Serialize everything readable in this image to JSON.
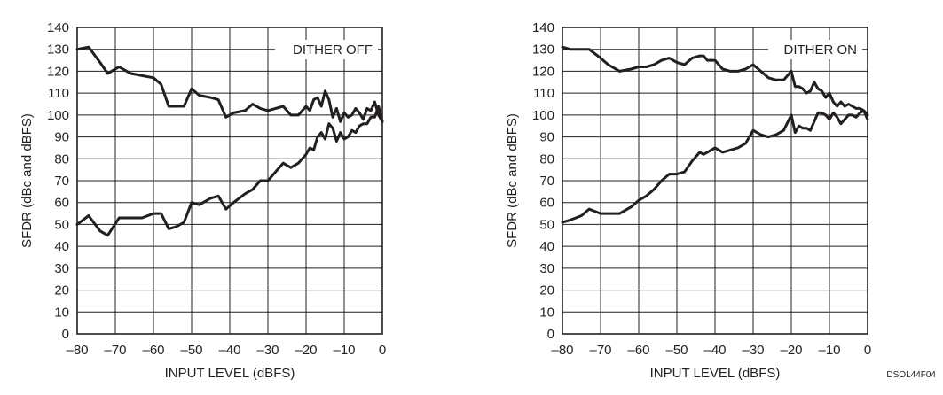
{
  "figure_id": "DSOL44F04",
  "chart_data": [
    {
      "type": "line",
      "annotation": "DITHER OFF",
      "xlabel": "INPUT LEVEL  (dBFS)",
      "ylabel": "SFDR (dBc and dBFS)",
      "xlim": [
        -80,
        0
      ],
      "ylim": [
        0,
        140
      ],
      "xticks": [
        -80,
        -70,
        -60,
        -50,
        -40,
        -30,
        -20,
        -10,
        0
      ],
      "xtick_labels": [
        "–80",
        "–70",
        "–60",
        "–50",
        "–40",
        "–30",
        "–20",
        "–10",
        "0"
      ],
      "yticks": [
        0,
        10,
        20,
        30,
        40,
        50,
        60,
        70,
        80,
        90,
        100,
        110,
        120,
        130,
        140
      ],
      "ytick_labels": [
        "0",
        "10",
        "20",
        "30",
        "40",
        "50",
        "60",
        "70",
        "80",
        "90",
        "100",
        "110",
        "120",
        "130",
        "140"
      ],
      "grid": true,
      "line_color": "#231f20",
      "series": [
        {
          "x": [
            -80,
            -77,
            -74,
            -72,
            -69,
            -66,
            -63,
            -60,
            -58,
            -56,
            -54,
            -52,
            -50,
            -48,
            -45,
            -43,
            -41,
            -39,
            -36,
            -34,
            -32,
            -30,
            -26,
            -24,
            -22,
            -20,
            -19,
            -18,
            -17,
            -16,
            -15,
            -14,
            -13,
            -12,
            -11,
            -10,
            -9,
            -8,
            -7,
            -6,
            -5,
            -4,
            -3,
            -2,
            -1,
            0
          ],
          "y": [
            130,
            131,
            124,
            119,
            122,
            119,
            118,
            117,
            114,
            104,
            104,
            104,
            112,
            109,
            108,
            107,
            99,
            101,
            102,
            105,
            103,
            102,
            104,
            100,
            100,
            104,
            102,
            107,
            108,
            104,
            111,
            107,
            99,
            103,
            97,
            101,
            99,
            100,
            103,
            101,
            98,
            103,
            102,
            106,
            100,
            97
          ]
        },
        {
          "x": [
            -80,
            -77,
            -74,
            -72,
            -69,
            -66,
            -63,
            -60,
            -58,
            -56,
            -54,
            -52,
            -50,
            -48,
            -45,
            -43,
            -41,
            -39,
            -36,
            -34,
            -32,
            -30,
            -26,
            -24,
            -22,
            -20,
            -19,
            -18,
            -17,
            -16,
            -15,
            -14,
            -13,
            -12,
            -11,
            -10,
            -9,
            -8,
            -7,
            -6,
            -5,
            -4,
            -3,
            -2,
            -1,
            0
          ],
          "y": [
            50,
            54,
            47,
            45,
            53,
            53,
            53,
            55,
            55,
            48,
            49,
            51,
            60,
            59,
            62,
            63,
            57,
            60,
            64,
            66,
            70,
            70,
            78,
            76,
            78,
            82,
            85,
            84,
            90,
            92,
            89,
            96,
            94,
            88,
            92,
            89,
            90,
            93,
            92,
            95,
            96,
            96,
            99,
            99,
            104,
            97
          ]
        }
      ]
    },
    {
      "type": "line",
      "annotation": "DITHER ON",
      "xlabel": "INPUT LEVEL  (dBFS)",
      "ylabel": "SFDR (dBc and dBFS)",
      "xlim": [
        -80,
        0
      ],
      "ylim": [
        0,
        140
      ],
      "xticks": [
        -80,
        -70,
        -60,
        -50,
        -40,
        -30,
        -20,
        -10,
        0
      ],
      "xtick_labels": [
        "–80",
        "–70",
        "–60",
        "–50",
        "–40",
        "–30",
        "–20",
        "–10",
        "0"
      ],
      "yticks": [
        0,
        10,
        20,
        30,
        40,
        50,
        60,
        70,
        80,
        90,
        100,
        110,
        120,
        130,
        140
      ],
      "ytick_labels": [
        "0",
        "10",
        "20",
        "30",
        "40",
        "50",
        "60",
        "70",
        "80",
        "90",
        "100",
        "110",
        "120",
        "130",
        "140"
      ],
      "grid": true,
      "line_color": "#231f20",
      "series": [
        {
          "x": [
            -80,
            -78,
            -75,
            -73,
            -70,
            -68,
            -65,
            -62,
            -60,
            -58,
            -56,
            -54,
            -52,
            -50,
            -48,
            -46,
            -44,
            -43,
            -42,
            -40,
            -38,
            -36,
            -34,
            -32,
            -30,
            -28,
            -26,
            -24,
            -22,
            -20,
            -19,
            -18,
            -17,
            -16,
            -15,
            -14,
            -13,
            -12,
            -11,
            -10,
            -9,
            -8,
            -7,
            -6,
            -5,
            -4,
            -3,
            -2,
            -1,
            0
          ],
          "y": [
            131,
            130,
            130,
            130,
            126,
            123,
            120,
            121,
            122,
            122,
            123,
            125,
            126,
            124,
            123,
            126,
            127,
            127,
            125,
            125,
            121,
            120,
            120,
            121,
            123,
            120,
            117,
            116,
            116,
            120,
            113,
            113,
            112,
            110,
            111,
            115,
            112,
            111,
            108,
            110,
            106,
            104,
            106,
            104,
            105,
            104,
            103,
            103,
            102,
            98
          ]
        },
        {
          "x": [
            -80,
            -78,
            -75,
            -73,
            -70,
            -68,
            -65,
            -62,
            -60,
            -58,
            -56,
            -54,
            -52,
            -50,
            -48,
            -46,
            -44,
            -43,
            -42,
            -40,
            -38,
            -36,
            -34,
            -32,
            -30,
            -28,
            -26,
            -24,
            -22,
            -20,
            -19,
            -18,
            -17,
            -16,
            -15,
            -14,
            -13,
            -12,
            -11,
            -10,
            -9,
            -8,
            -7,
            -6,
            -5,
            -4,
            -3,
            -2,
            -1,
            0
          ],
          "y": [
            51,
            52,
            54,
            57,
            55,
            55,
            55,
            58,
            61,
            63,
            66,
            70,
            73,
            73,
            74,
            79,
            83,
            82,
            83,
            85,
            83,
            84,
            85,
            87,
            93,
            91,
            90,
            91,
            93,
            100,
            92,
            95,
            94,
            94,
            93,
            97,
            101,
            101,
            100,
            98,
            101,
            99,
            96,
            98,
            100,
            100,
            99,
            101,
            102,
            100
          ]
        }
      ]
    }
  ]
}
